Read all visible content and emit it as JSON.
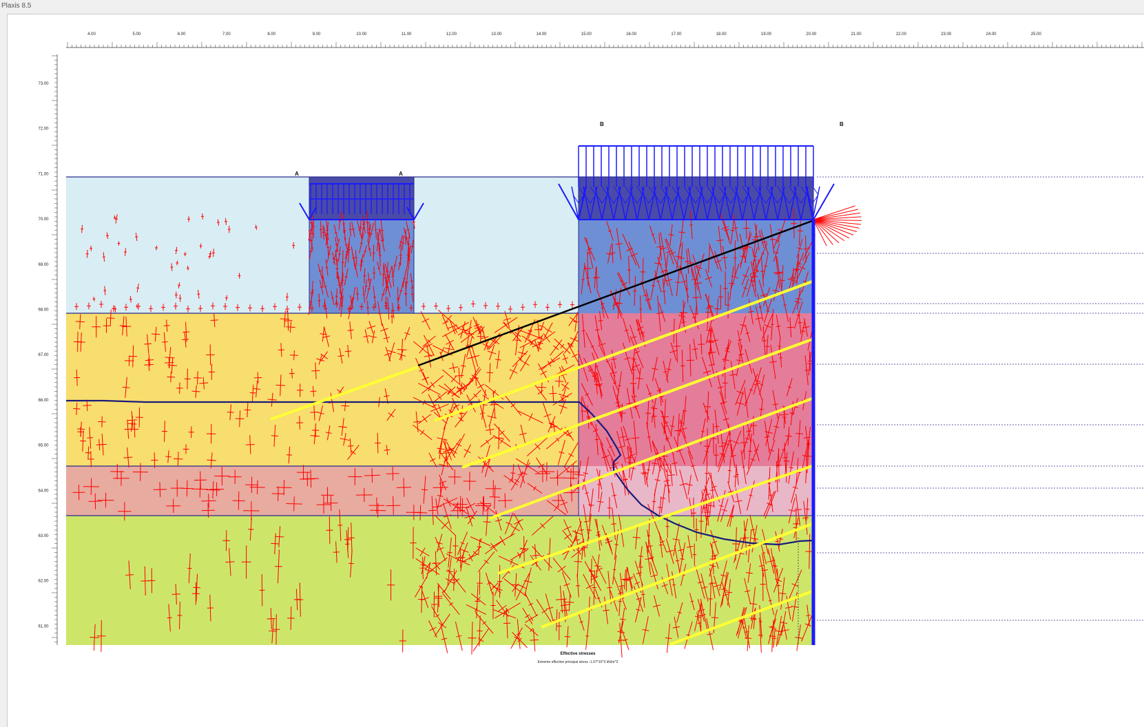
{
  "window": {
    "title": "Plaxis 8.5"
  },
  "axes": {
    "x_ticks": [
      "4.00",
      "5.00",
      "6.00",
      "7.00",
      "8.00",
      "9.00",
      "10.00",
      "11.00",
      "12.00",
      "13.00",
      "14.00",
      "15.00",
      "16.00",
      "17.00",
      "18.00",
      "19.00",
      "20.00",
      "21.00",
      "22.00",
      "23.00",
      "24.00",
      "25.00"
    ],
    "y_ticks": [
      "73.00",
      "72.00",
      "71.00",
      "70.00",
      "69.00",
      "68.00",
      "67.00",
      "66.00",
      "65.00",
      "64.00",
      "63.00",
      "62.00",
      "61.00"
    ]
  },
  "labels": {
    "section_a_left": "A",
    "section_a_right": "A",
    "section_b_left": "B",
    "section_b_right": "B"
  },
  "caption": {
    "title": "Effective stresses",
    "subtitle": "Extreme effective principal stress -1.07*10^3 kN/m^2"
  },
  "colors": {
    "layer_top": "#d8eef4",
    "layer_sand": "#f7de6e",
    "layer_clay": "#e8aba0",
    "layer_base": "#cde66a",
    "structure_dark": "#4a4aa8",
    "structure_mid": "#6f8fd4",
    "structure_pink": "#e37d9a",
    "stress_cross": "#ff0000",
    "load_blue": "#1a1aff",
    "anchor_yellow": "#ffff33",
    "slip_line": "#000000",
    "phreatic_line": "#1a1a7a"
  }
}
